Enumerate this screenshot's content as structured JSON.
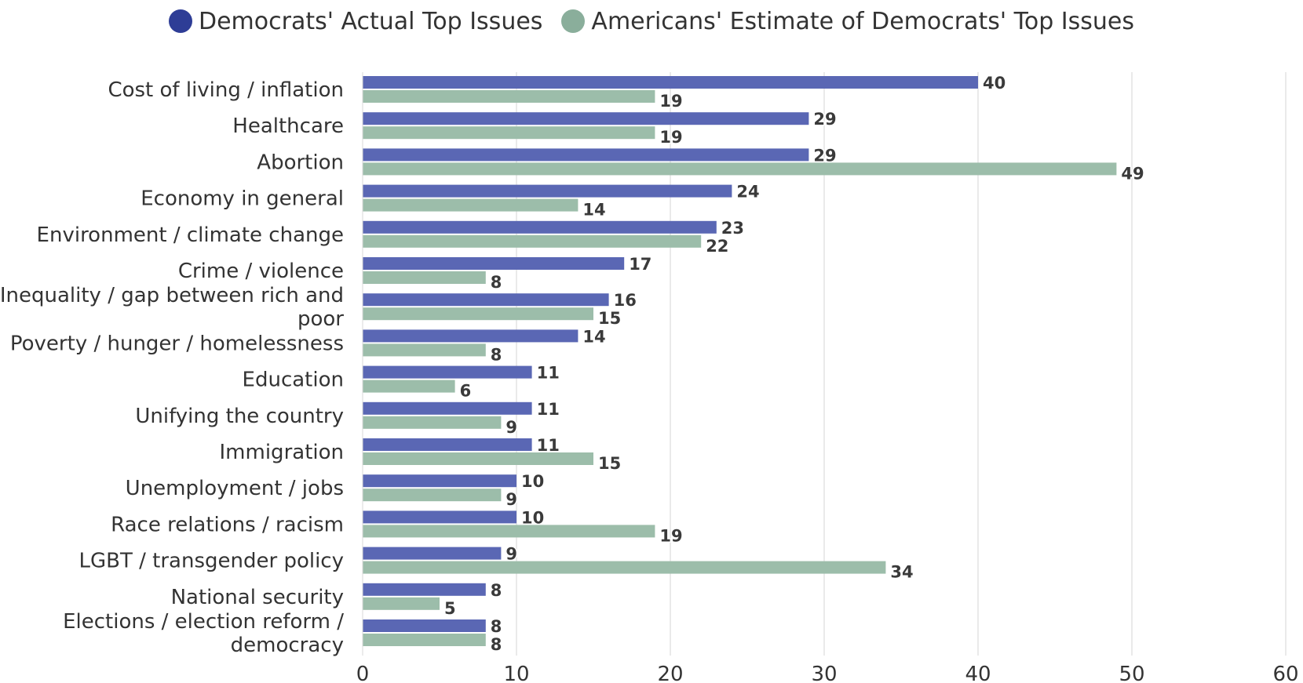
{
  "chart_data": {
    "type": "bar",
    "orientation": "horizontal",
    "title": "",
    "xlabel": "",
    "ylabel": "",
    "xlim": [
      0,
      60
    ],
    "xticks": [
      0,
      10,
      20,
      30,
      40,
      50,
      60
    ],
    "grid": true,
    "legend_position": "top",
    "categories": [
      "Cost of living / inflation",
      "Healthcare",
      "Abortion",
      "Economy in general",
      "Environment / climate change",
      "Crime / violence",
      "Inequality / gap between rich and poor",
      "Poverty / hunger / homelessness",
      "Education",
      "Unifying the country",
      "Immigration",
      "Unemployment / jobs",
      "Race relations / racism",
      "LGBT / transgender policy",
      "National security",
      "Elections / election reform / democracy"
    ],
    "category_lines": [
      [
        "Cost of living / inflation"
      ],
      [
        "Healthcare"
      ],
      [
        "Abortion"
      ],
      [
        "Economy in general"
      ],
      [
        "Environment / climate change"
      ],
      [
        "Crime / violence"
      ],
      [
        "Inequality / gap between rich and",
        "poor"
      ],
      [
        "Poverty / hunger / homelessness"
      ],
      [
        "Education"
      ],
      [
        "Unifying the country"
      ],
      [
        "Immigration"
      ],
      [
        "Unemployment / jobs"
      ],
      [
        "Race relations / racism"
      ],
      [
        "LGBT / transgender policy"
      ],
      [
        "National security"
      ],
      [
        "Elections / election reform /",
        "democracy"
      ]
    ],
    "series": [
      {
        "name": "Democrats' Actual Top Issues",
        "color": "#5a67b4",
        "legend_color": "#2e3d96",
        "values": [
          40,
          29,
          29,
          24,
          23,
          17,
          16,
          14,
          11,
          11,
          11,
          10,
          10,
          9,
          8,
          8
        ]
      },
      {
        "name": "Americans' Estimate of Democrats' Top Issues",
        "color": "#9cbdaa",
        "legend_color": "#8aae9b",
        "values": [
          19,
          19,
          49,
          14,
          22,
          8,
          15,
          8,
          6,
          9,
          15,
          9,
          19,
          34,
          5,
          8
        ]
      }
    ]
  }
}
